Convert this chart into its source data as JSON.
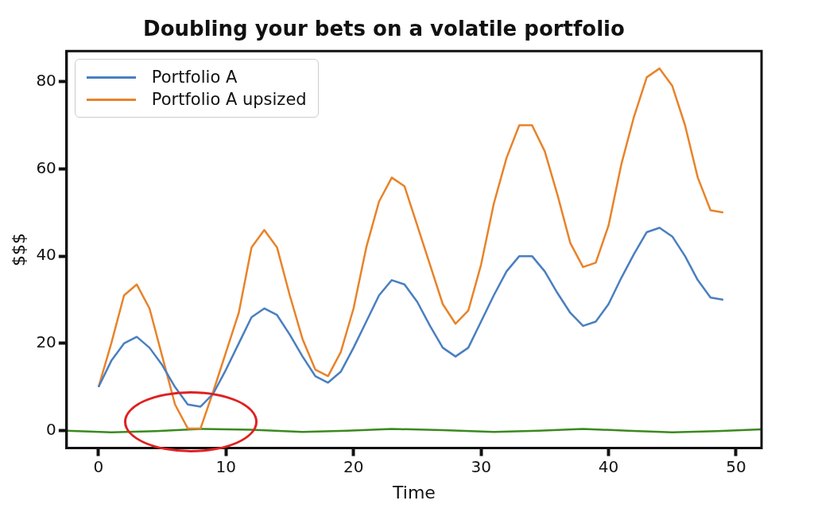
{
  "chart_data": {
    "type": "line",
    "title": "Doubling your bets on a volatile portfolio",
    "xlabel": "Time",
    "ylabel": "$$$",
    "xlim": [
      -2.5,
      52
    ],
    "xticks": [
      0,
      10,
      20,
      30,
      40,
      50
    ],
    "ylim": [
      -4,
      87
    ],
    "yticks": [
      0,
      20,
      40,
      60,
      80
    ],
    "grid": false,
    "legend": "top left",
    "line_style": "solid",
    "marker": "none",
    "series": [
      {
        "name": "Portfolio A",
        "color": "#4a7fc0",
        "x": [
          0,
          1,
          2,
          3,
          4,
          5,
          6,
          7,
          8,
          9,
          10,
          11,
          12,
          13,
          14,
          15,
          16,
          17,
          18,
          19,
          20,
          21,
          22,
          23,
          24,
          25,
          26,
          27,
          28,
          29,
          30,
          31,
          32,
          33,
          34,
          35,
          36,
          37,
          38,
          39,
          40,
          41,
          42,
          43,
          44,
          45,
          46,
          47,
          48,
          49
        ],
        "values": [
          10,
          16,
          20,
          21.5,
          19,
          15,
          10,
          6,
          5.5,
          8.5,
          14,
          20,
          26,
          28,
          26.5,
          22,
          17,
          12.5,
          11,
          13.5,
          19,
          25,
          31,
          34.5,
          33.5,
          29.5,
          24,
          19,
          17,
          19,
          25,
          31,
          36.5,
          40,
          40,
          36.5,
          31.5,
          27,
          24,
          25,
          29,
          35,
          40.5,
          45.5,
          46.5,
          44.5,
          40,
          34.5,
          30.5,
          30
        ]
      },
      {
        "name": "Portfolio A upsized",
        "color": "#e8832a",
        "x": [
          0,
          1,
          2,
          3,
          4,
          5,
          6,
          7,
          8,
          9,
          10,
          11,
          12,
          13,
          14,
          15,
          16,
          17,
          18,
          19,
          20,
          21,
          22,
          23,
          24,
          25,
          26,
          27,
          28,
          29,
          30,
          31,
          32,
          33,
          34,
          35,
          36,
          37,
          38,
          39,
          40,
          41,
          42,
          43,
          44,
          45,
          46,
          47,
          48,
          49
        ],
        "values": [
          10,
          20,
          31,
          33.5,
          28,
          17,
          6,
          0.5,
          0.5,
          9,
          18,
          27,
          42,
          46,
          42,
          31,
          21,
          14,
          12.5,
          18,
          28,
          42,
          52.5,
          58,
          56,
          47,
          38,
          29,
          24.5,
          27.5,
          38,
          52,
          62.5,
          70,
          70,
          64,
          54,
          43,
          37.5,
          38.5,
          47,
          61,
          72,
          81,
          83,
          79,
          70,
          58,
          50.5,
          50
        ]
      },
      {
        "color": "#3a8a1e",
        "x": [
          -2.5,
          1,
          4.5,
          8,
          12,
          16,
          19.5,
          23,
          27,
          31,
          34.5,
          38,
          41.5,
          45,
          48.5,
          52
        ],
        "values": [
          0,
          -0.4,
          -0.1,
          0.4,
          0.2,
          -0.3,
          0,
          0.4,
          0.1,
          -0.3,
          0,
          0.4,
          0,
          -0.4,
          -0.1,
          0.3
        ]
      }
    ]
  }
}
